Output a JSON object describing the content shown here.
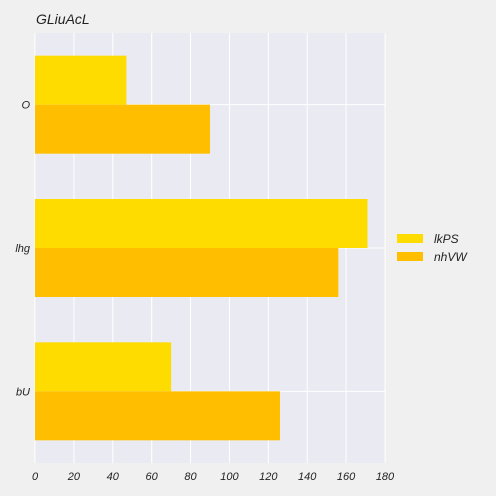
{
  "chart_data": {
    "type": "bar",
    "orientation": "horizontal",
    "title": "GLiuAcL",
    "categories": [
      "O",
      "lhg",
      "bU"
    ],
    "series": [
      {
        "name": "lkPS",
        "values": [
          47,
          171,
          70
        ],
        "color": "#ffdc00"
      },
      {
        "name": "nhVW",
        "values": [
          90,
          156,
          126
        ],
        "color": "#ffbf00"
      }
    ],
    "xlim": [
      0,
      180
    ],
    "xticks": [
      0,
      20,
      40,
      60,
      80,
      100,
      120,
      140,
      160,
      180
    ],
    "xlabel": "",
    "ylabel": "",
    "grid": true,
    "legend_position": "right",
    "background": "#eaeaf2",
    "page_background": "#f0f0f0"
  }
}
